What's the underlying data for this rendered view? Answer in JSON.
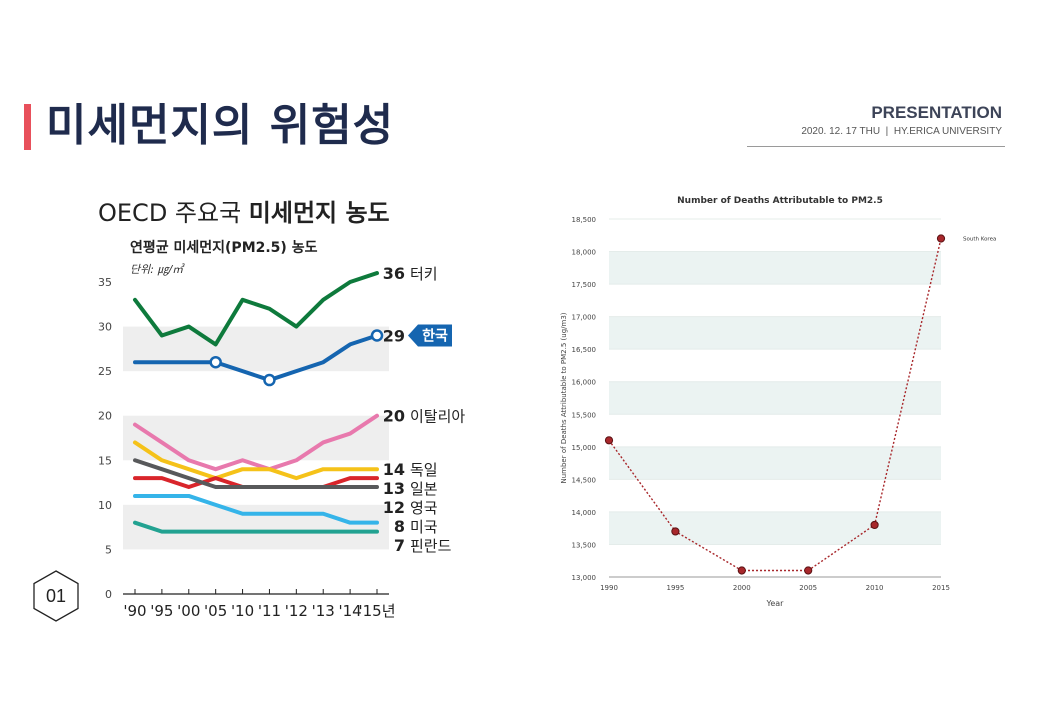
{
  "slide": {
    "title": "미세먼지의 위험성",
    "presentation_label": "PRESENTATION",
    "subtitle_date": "2020. 12. 17 THU",
    "subtitle_separator": "|",
    "subtitle_org": "HY.ERICA UNIVERSITY",
    "page_number": "01"
  },
  "colors": {
    "accent": "#e8505b",
    "title": "#1f2b4d"
  },
  "chart_data": [
    {
      "type": "line",
      "title_light": "OECD 주요국",
      "title_bold": "미세먼지 농도",
      "subtitle": "연평균 미세먼지(PM2.5) 농도",
      "unit": "단위: ㎍/㎥",
      "categories": [
        "'90",
        "'95",
        "'00",
        "'05",
        "'10",
        "'11",
        "'12",
        "'13",
        "'14",
        "'15년"
      ],
      "ylim": [
        0,
        35
      ],
      "yticks": [
        0,
        5,
        10,
        15,
        20,
        25,
        30,
        35
      ],
      "series": [
        {
          "name": "터키",
          "end_label": "36",
          "color": "#0e7a3c",
          "values": [
            33,
            29,
            30,
            28,
            33,
            32,
            30,
            33,
            35,
            36
          ]
        },
        {
          "name": "한국",
          "end_label": "29",
          "color": "#1565b0",
          "highlight": true,
          "values": [
            26,
            26,
            26,
            26,
            25,
            24,
            25,
            26,
            28,
            29
          ],
          "marker_indices": [
            3,
            5,
            9
          ]
        },
        {
          "name": "이탈리아",
          "end_label": "20",
          "color": "#e879ad",
          "values": [
            19,
            17,
            15,
            14,
            15,
            14,
            15,
            17,
            18,
            20
          ]
        },
        {
          "name": "독일",
          "end_label": "14",
          "color": "#f5c219",
          "values": [
            17,
            15,
            14,
            13,
            14,
            14,
            13,
            14,
            14,
            14
          ]
        },
        {
          "name": "일본",
          "end_label": "13",
          "color": "#d9252b",
          "values": [
            13,
            13,
            12,
            13,
            12,
            12,
            12,
            12,
            13,
            13
          ]
        },
        {
          "name": "영국",
          "end_label": "12",
          "color": "#58595b",
          "values": [
            15,
            14,
            13,
            12,
            12,
            12,
            12,
            12,
            12,
            12
          ]
        },
        {
          "name": "미국",
          "end_label": "8",
          "color": "#35b4e9",
          "values": [
            11,
            11,
            11,
            10,
            9,
            9,
            9,
            9,
            8,
            8
          ]
        },
        {
          "name": "핀란드",
          "end_label": "7",
          "color": "#22a291",
          "values": [
            8,
            7,
            7,
            7,
            7,
            7,
            7,
            7,
            7,
            7
          ]
        }
      ]
    },
    {
      "type": "line",
      "title": "Number of Deaths Attributable to PM2.5",
      "xlabel": "Year",
      "ylabel": "Number of Deaths Attributable to PM2.5 (ug/m3)",
      "x": [
        1990,
        1995,
        2000,
        2005,
        2010,
        2015
      ],
      "ylim": [
        13000,
        18500
      ],
      "yticks": [
        13000,
        13500,
        14000,
        14500,
        15000,
        15500,
        16000,
        16500,
        17000,
        17500,
        18000,
        18500
      ],
      "series": [
        {
          "name": "South Korea",
          "color": "#a8272b",
          "values": [
            15100,
            13700,
            13100,
            13100,
            13800,
            18200
          ]
        }
      ]
    }
  ]
}
